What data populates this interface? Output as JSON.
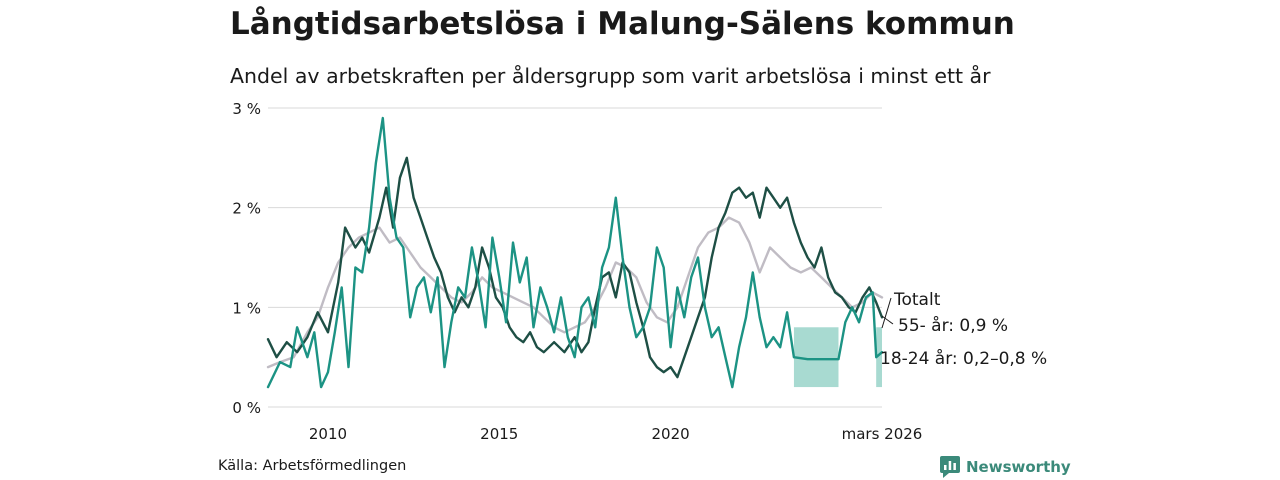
{
  "title": "Långtidsarbetslösa i Malung-Sälens kommun",
  "subtitle": "Andel av arbetskraften per åldersgrupp som varit arbetslösa i minst ett år",
  "source": "Källa: Arbetsförmedlingen",
  "brand": "Newsworthy",
  "colors": {
    "totalt": "#c0bcc4",
    "age55": "#1e4f45",
    "age18_24": "#1c9384",
    "band": "#9fd6cc",
    "grid": "#d9d9d9",
    "brand": "#3b8a7a"
  },
  "chart_data": {
    "type": "line",
    "y_unit": "%",
    "ylim": [
      0,
      3
    ],
    "y_ticks": [
      {
        "value": 0,
        "label": "0 %"
      },
      {
        "value": 1,
        "label": "1 %"
      },
      {
        "value": 2,
        "label": "2 %"
      },
      {
        "value": 3,
        "label": "3 %"
      }
    ],
    "x_range": [
      2008.25,
      2026.17
    ],
    "x_ticks": [
      {
        "value": 2010,
        "label": "2010"
      },
      {
        "value": 2015,
        "label": "2015"
      },
      {
        "value": 2020,
        "label": "2020"
      },
      {
        "value": 2026.17,
        "label": "mars 2026"
      }
    ],
    "series": [
      {
        "key": "totalt",
        "name": "Totalt",
        "end_label": "Totalt",
        "color": "#c0bcc4",
        "points": [
          [
            2008.25,
            0.4
          ],
          [
            2008.6,
            0.45
          ],
          [
            2009.0,
            0.5
          ],
          [
            2009.4,
            0.75
          ],
          [
            2009.7,
            0.9
          ],
          [
            2010.0,
            1.2
          ],
          [
            2010.3,
            1.45
          ],
          [
            2010.6,
            1.6
          ],
          [
            2010.9,
            1.7
          ],
          [
            2011.2,
            1.75
          ],
          [
            2011.5,
            1.8
          ],
          [
            2011.8,
            1.65
          ],
          [
            2012.1,
            1.7
          ],
          [
            2012.4,
            1.55
          ],
          [
            2012.7,
            1.4
          ],
          [
            2013.0,
            1.3
          ],
          [
            2013.3,
            1.2
          ],
          [
            2013.6,
            1.1
          ],
          [
            2013.9,
            1.05
          ],
          [
            2014.2,
            1.15
          ],
          [
            2014.5,
            1.3
          ],
          [
            2014.8,
            1.2
          ],
          [
            2015.1,
            1.15
          ],
          [
            2015.4,
            1.1
          ],
          [
            2015.7,
            1.05
          ],
          [
            2016.0,
            1.0
          ],
          [
            2016.3,
            0.9
          ],
          [
            2016.6,
            0.8
          ],
          [
            2016.9,
            0.75
          ],
          [
            2017.2,
            0.8
          ],
          [
            2017.5,
            0.85
          ],
          [
            2017.8,
            1.0
          ],
          [
            2018.1,
            1.2
          ],
          [
            2018.4,
            1.45
          ],
          [
            2018.7,
            1.4
          ],
          [
            2019.0,
            1.3
          ],
          [
            2019.3,
            1.05
          ],
          [
            2019.6,
            0.9
          ],
          [
            2019.9,
            0.85
          ],
          [
            2020.2,
            1.0
          ],
          [
            2020.5,
            1.3
          ],
          [
            2020.8,
            1.6
          ],
          [
            2021.1,
            1.75
          ],
          [
            2021.4,
            1.8
          ],
          [
            2021.7,
            1.9
          ],
          [
            2022.0,
            1.85
          ],
          [
            2022.3,
            1.65
          ],
          [
            2022.6,
            1.35
          ],
          [
            2022.9,
            1.6
          ],
          [
            2023.2,
            1.5
          ],
          [
            2023.5,
            1.4
          ],
          [
            2023.8,
            1.35
          ],
          [
            2024.1,
            1.4
          ],
          [
            2024.4,
            1.3
          ],
          [
            2024.7,
            1.2
          ],
          [
            2025.0,
            1.1
          ],
          [
            2025.3,
            1.0
          ],
          [
            2025.6,
            1.05
          ],
          [
            2025.9,
            1.15
          ],
          [
            2026.17,
            1.1
          ]
        ]
      },
      {
        "key": "age55",
        "name": "55- år",
        "end_label": "55- år: 0,9 %",
        "color": "#1e4f45",
        "points": [
          [
            2008.25,
            0.68
          ],
          [
            2008.5,
            0.5
          ],
          [
            2008.8,
            0.65
          ],
          [
            2009.1,
            0.55
          ],
          [
            2009.4,
            0.7
          ],
          [
            2009.7,
            0.95
          ],
          [
            2010.0,
            0.75
          ],
          [
            2010.3,
            1.25
          ],
          [
            2010.5,
            1.8
          ],
          [
            2010.8,
            1.6
          ],
          [
            2011.0,
            1.7
          ],
          [
            2011.2,
            1.55
          ],
          [
            2011.5,
            1.9
          ],
          [
            2011.7,
            2.2
          ],
          [
            2011.9,
            1.8
          ],
          [
            2012.1,
            2.3
          ],
          [
            2012.3,
            2.5
          ],
          [
            2012.5,
            2.1
          ],
          [
            2012.7,
            1.9
          ],
          [
            2012.9,
            1.7
          ],
          [
            2013.1,
            1.5
          ],
          [
            2013.3,
            1.35
          ],
          [
            2013.5,
            1.1
          ],
          [
            2013.7,
            0.95
          ],
          [
            2013.9,
            1.1
          ],
          [
            2014.1,
            1.0
          ],
          [
            2014.3,
            1.2
          ],
          [
            2014.5,
            1.6
          ],
          [
            2014.7,
            1.4
          ],
          [
            2014.9,
            1.1
          ],
          [
            2015.1,
            1.0
          ],
          [
            2015.3,
            0.8
          ],
          [
            2015.5,
            0.7
          ],
          [
            2015.7,
            0.65
          ],
          [
            2015.9,
            0.75
          ],
          [
            2016.1,
            0.6
          ],
          [
            2016.3,
            0.55
          ],
          [
            2016.6,
            0.65
          ],
          [
            2016.9,
            0.55
          ],
          [
            2017.2,
            0.7
          ],
          [
            2017.4,
            0.55
          ],
          [
            2017.6,
            0.65
          ],
          [
            2017.8,
            1.0
          ],
          [
            2018.0,
            1.3
          ],
          [
            2018.2,
            1.35
          ],
          [
            2018.4,
            1.1
          ],
          [
            2018.6,
            1.45
          ],
          [
            2018.8,
            1.35
          ],
          [
            2019.0,
            1.05
          ],
          [
            2019.2,
            0.8
          ],
          [
            2019.4,
            0.5
          ],
          [
            2019.6,
            0.4
          ],
          [
            2019.8,
            0.35
          ],
          [
            2020.0,
            0.4
          ],
          [
            2020.2,
            0.3
          ],
          [
            2020.4,
            0.5
          ],
          [
            2020.6,
            0.7
          ],
          [
            2020.8,
            0.9
          ],
          [
            2021.0,
            1.1
          ],
          [
            2021.2,
            1.5
          ],
          [
            2021.4,
            1.8
          ],
          [
            2021.6,
            1.95
          ],
          [
            2021.8,
            2.15
          ],
          [
            2022.0,
            2.2
          ],
          [
            2022.2,
            2.1
          ],
          [
            2022.4,
            2.15
          ],
          [
            2022.6,
            1.9
          ],
          [
            2022.8,
            2.2
          ],
          [
            2023.0,
            2.1
          ],
          [
            2023.2,
            2.0
          ],
          [
            2023.4,
            2.1
          ],
          [
            2023.6,
            1.85
          ],
          [
            2023.8,
            1.65
          ],
          [
            2024.0,
            1.5
          ],
          [
            2024.2,
            1.4
          ],
          [
            2024.4,
            1.6
          ],
          [
            2024.6,
            1.3
          ],
          [
            2024.8,
            1.15
          ],
          [
            2025.0,
            1.1
          ],
          [
            2025.2,
            1.0
          ],
          [
            2025.4,
            0.95
          ],
          [
            2025.6,
            1.1
          ],
          [
            2025.8,
            1.2
          ],
          [
            2026.0,
            1.05
          ],
          [
            2026.17,
            0.9
          ]
        ]
      },
      {
        "key": "age18_24",
        "name": "18-24 år",
        "end_label": "18-24 år: 0,2–0,8 %",
        "color": "#1c9384",
        "points": [
          [
            2008.25,
            0.2
          ],
          [
            2008.6,
            0.45
          ],
          [
            2008.9,
            0.4
          ],
          [
            2009.1,
            0.8
          ],
          [
            2009.4,
            0.5
          ],
          [
            2009.6,
            0.75
          ],
          [
            2009.8,
            0.2
          ],
          [
            2010.0,
            0.35
          ],
          [
            2010.2,
            0.75
          ],
          [
            2010.4,
            1.2
          ],
          [
            2010.6,
            0.4
          ],
          [
            2010.8,
            1.4
          ],
          [
            2011.0,
            1.35
          ],
          [
            2011.2,
            1.8
          ],
          [
            2011.4,
            2.45
          ],
          [
            2011.6,
            2.9
          ],
          [
            2011.8,
            2.1
          ],
          [
            2012.0,
            1.7
          ],
          [
            2012.2,
            1.6
          ],
          [
            2012.4,
            0.9
          ],
          [
            2012.6,
            1.2
          ],
          [
            2012.8,
            1.3
          ],
          [
            2013.0,
            0.95
          ],
          [
            2013.2,
            1.3
          ],
          [
            2013.4,
            0.4
          ],
          [
            2013.6,
            0.85
          ],
          [
            2013.8,
            1.2
          ],
          [
            2014.0,
            1.1
          ],
          [
            2014.2,
            1.6
          ],
          [
            2014.4,
            1.25
          ],
          [
            2014.6,
            0.8
          ],
          [
            2014.8,
            1.7
          ],
          [
            2015.0,
            1.3
          ],
          [
            2015.2,
            0.85
          ],
          [
            2015.4,
            1.65
          ],
          [
            2015.6,
            1.25
          ],
          [
            2015.8,
            1.5
          ],
          [
            2016.0,
            0.8
          ],
          [
            2016.2,
            1.2
          ],
          [
            2016.4,
            1.0
          ],
          [
            2016.6,
            0.75
          ],
          [
            2016.8,
            1.1
          ],
          [
            2017.0,
            0.7
          ],
          [
            2017.2,
            0.5
          ],
          [
            2017.4,
            1.0
          ],
          [
            2017.6,
            1.1
          ],
          [
            2017.8,
            0.8
          ],
          [
            2018.0,
            1.4
          ],
          [
            2018.2,
            1.6
          ],
          [
            2018.4,
            2.1
          ],
          [
            2018.6,
            1.5
          ],
          [
            2018.8,
            1.0
          ],
          [
            2019.0,
            0.7
          ],
          [
            2019.2,
            0.8
          ],
          [
            2019.4,
            1.0
          ],
          [
            2019.6,
            1.6
          ],
          [
            2019.8,
            1.4
          ],
          [
            2020.0,
            0.6
          ],
          [
            2020.2,
            1.2
          ],
          [
            2020.4,
            0.9
          ],
          [
            2020.6,
            1.3
          ],
          [
            2020.8,
            1.5
          ],
          [
            2021.0,
            1.0
          ],
          [
            2021.2,
            0.7
          ],
          [
            2021.4,
            0.8
          ],
          [
            2021.6,
            0.5
          ],
          [
            2021.8,
            0.2
          ],
          [
            2022.0,
            0.6
          ],
          [
            2022.2,
            0.9
          ],
          [
            2022.4,
            1.35
          ],
          [
            2022.6,
            0.9
          ],
          [
            2022.8,
            0.6
          ],
          [
            2023.0,
            0.7
          ],
          [
            2023.2,
            0.6
          ],
          [
            2023.4,
            0.95
          ],
          [
            2023.6,
            0.5
          ],
          [
            2024.0,
            0.48
          ],
          [
            2024.5,
            0.48
          ],
          [
            2024.9,
            0.48
          ],
          [
            2025.1,
            0.85
          ],
          [
            2025.3,
            1.0
          ],
          [
            2025.5,
            0.85
          ],
          [
            2025.7,
            1.1
          ],
          [
            2025.9,
            1.15
          ],
          [
            2026.0,
            0.5
          ],
          [
            2026.17,
            0.55
          ]
        ]
      }
    ],
    "uncertainty_band": {
      "series": "18-24 år",
      "x_start": 2023.6,
      "x_end": 2024.9,
      "lower": 0.2,
      "upper": 0.8
    }
  }
}
